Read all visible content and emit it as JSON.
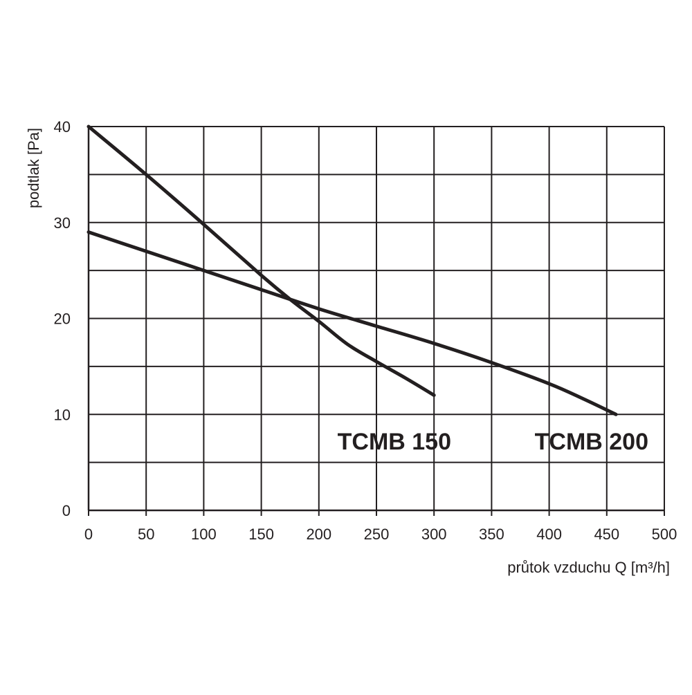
{
  "chart_data": {
    "type": "line",
    "xlabel": "průtok vzduchu Q [m³/h]",
    "ylabel": "podtlak [Pa]",
    "xlim": [
      0,
      500
    ],
    "ylim": [
      0,
      40
    ],
    "x_ticks": [
      0,
      50,
      100,
      150,
      200,
      250,
      300,
      350,
      400,
      450,
      500
    ],
    "x_tick_labels": [
      "0",
      "50",
      "100",
      "150",
      "200",
      "250",
      "300",
      "350",
      "400",
      "450",
      "500"
    ],
    "y_ticks": [
      0,
      10,
      20,
      30,
      40
    ],
    "y_tick_labels": [
      "0",
      "10",
      "20",
      "30",
      "40"
    ],
    "y_grid_lines": [
      0,
      5,
      10,
      15,
      20,
      25,
      30,
      35,
      40
    ],
    "grid": true,
    "series": [
      {
        "name": "TCMB 150",
        "x": [
          0,
          50,
          100,
          150,
          175,
          200,
          225,
          250,
          275,
          300
        ],
        "y": [
          40,
          35,
          29.8,
          24.5,
          22,
          19.7,
          17.3,
          15.5,
          13.8,
          12
        ]
      },
      {
        "name": "TCMB 200",
        "x": [
          0,
          50,
          100,
          150,
          200,
          250,
          300,
          350,
          400,
          430,
          458
        ],
        "y": [
          29,
          27,
          25,
          23,
          21,
          19.2,
          17.4,
          15.4,
          13.2,
          11.6,
          10
        ]
      }
    ]
  }
}
